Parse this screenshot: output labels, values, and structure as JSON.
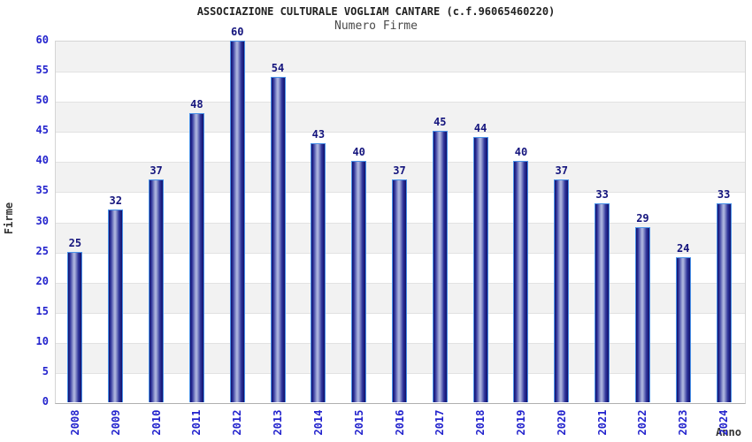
{
  "chart_data": {
    "type": "bar",
    "title": "ASSOCIAZIONE CULTURALE VOGLIAM CANTARE (c.f.96065460220)",
    "subtitle": "Numero Firme",
    "xlabel": "Anno",
    "ylabel": "Firme",
    "categories": [
      "2008",
      "2009",
      "2010",
      "2011",
      "2012",
      "2013",
      "2014",
      "2015",
      "2016",
      "2017",
      "2018",
      "2019",
      "2020",
      "2021",
      "2022",
      "2023",
      "2024"
    ],
    "values": [
      25,
      32,
      37,
      48,
      60,
      54,
      43,
      40,
      37,
      45,
      44,
      40,
      37,
      33,
      29,
      24,
      33
    ],
    "ylim": [
      0,
      60
    ],
    "ytick_step": 5,
    "ytick_labels": [
      "0",
      "5",
      "10",
      "15",
      "20",
      "25",
      "30",
      "35",
      "40",
      "45",
      "50",
      "55",
      "60"
    ],
    "legend": null,
    "grid": "horizontal-bands-alternating",
    "colors": {
      "bar_dark": "#10106b",
      "bar_mid": "#2e339a",
      "bar_light": "#a9b1dc",
      "bar_border": "#4a92e8",
      "tick_label": "#2323cd",
      "value_label": "#14147d",
      "band_gray": "#f2f2f2",
      "band_white": "#ffffff",
      "gridline": "#e2e2e2",
      "plot_border": "#d4d4d4",
      "axis_line": "#b0b0b0",
      "title_color": "#222222",
      "subtitle_color": "#4a4a4a",
      "axis_title_color": "#333333"
    }
  }
}
